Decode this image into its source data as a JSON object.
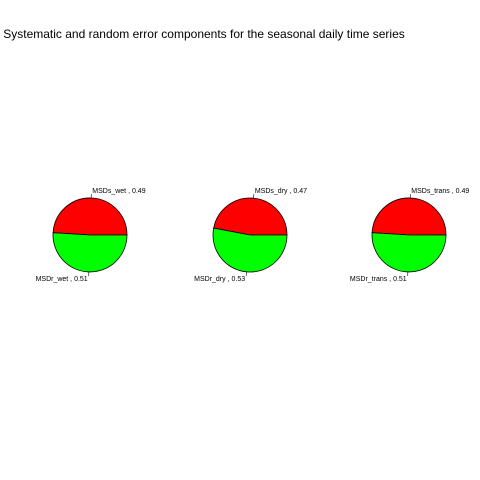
{
  "colors": {
    "systematic": "#ff0000",
    "random": "#00ff00",
    "outline": "#000000",
    "background": "#ffffff"
  },
  "chart_data": {
    "title": "Systematic and random error components for the seasonal daily time series",
    "charts": [
      {
        "type": "pie",
        "slices": [
          {
            "label": "MSDs_wet , 0.49",
            "value": 0.49,
            "color": "#ff0000"
          },
          {
            "label": "MSDr_wet , 0.51",
            "value": 0.51,
            "color": "#00ff00"
          }
        ]
      },
      {
        "type": "pie",
        "slices": [
          {
            "label": "MSDs_dry , 0.47",
            "value": 0.47,
            "color": "#ff0000"
          },
          {
            "label": "MSDr_dry , 0.53",
            "value": 0.53,
            "color": "#00ff00"
          }
        ]
      },
      {
        "type": "pie",
        "slices": [
          {
            "label": "MSDs_trans , 0.49",
            "value": 0.49,
            "color": "#ff0000"
          },
          {
            "label": "MSDr_trans , 0.51",
            "value": 0.51,
            "color": "#00ff00"
          }
        ]
      }
    ]
  }
}
